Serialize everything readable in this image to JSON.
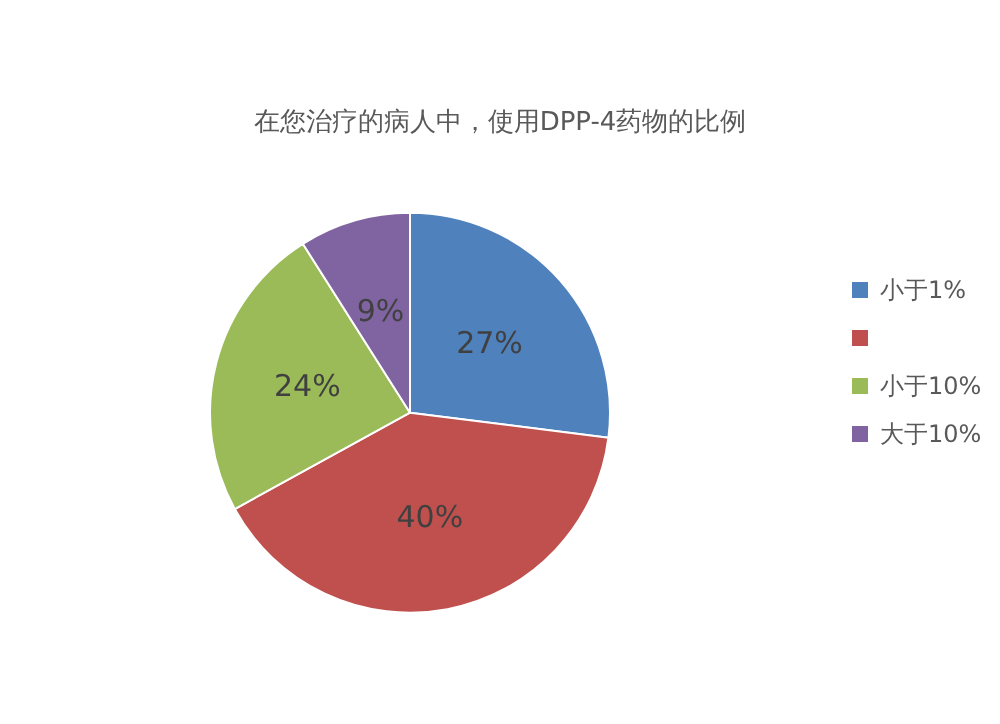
{
  "chart_data": {
    "type": "pie",
    "title": "在您治疗的病人中，使用DPP-4药物的比例",
    "categories": [
      "小于1%",
      null,
      "小于10%",
      "大于10%"
    ],
    "values": [
      27,
      40,
      24,
      9
    ],
    "colors": [
      "#4f81bd",
      "#c0504d",
      "#9bbb59",
      "#8064a2"
    ],
    "value_labels": [
      "27%",
      "40%",
      "24%",
      "9%"
    ],
    "legend": "right"
  }
}
